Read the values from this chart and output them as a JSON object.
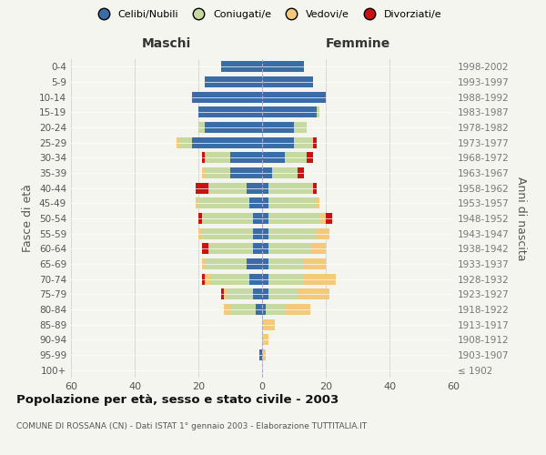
{
  "age_groups": [
    "100+",
    "95-99",
    "90-94",
    "85-89",
    "80-84",
    "75-79",
    "70-74",
    "65-69",
    "60-64",
    "55-59",
    "50-54",
    "45-49",
    "40-44",
    "35-39",
    "30-34",
    "25-29",
    "20-24",
    "15-19",
    "10-14",
    "5-9",
    "0-4"
  ],
  "birth_years": [
    "≤ 1902",
    "1903-1907",
    "1908-1912",
    "1913-1917",
    "1918-1922",
    "1923-1927",
    "1928-1932",
    "1933-1937",
    "1938-1942",
    "1943-1947",
    "1948-1952",
    "1953-1957",
    "1958-1962",
    "1963-1967",
    "1968-1972",
    "1973-1977",
    "1978-1982",
    "1983-1987",
    "1988-1992",
    "1993-1997",
    "1998-2002"
  ],
  "maschi": {
    "celibi": [
      0,
      1,
      0,
      0,
      2,
      3,
      4,
      5,
      3,
      3,
      3,
      4,
      5,
      10,
      10,
      22,
      18,
      20,
      22,
      18,
      13
    ],
    "coniugati": [
      0,
      0,
      0,
      0,
      8,
      8,
      12,
      13,
      14,
      16,
      16,
      16,
      12,
      8,
      8,
      4,
      2,
      0,
      0,
      0,
      0
    ],
    "vedovi": [
      0,
      0,
      0,
      0,
      2,
      1,
      2,
      1,
      0,
      1,
      0,
      1,
      0,
      1,
      0,
      1,
      0,
      0,
      0,
      0,
      0
    ],
    "divorziati": [
      0,
      0,
      0,
      0,
      0,
      1,
      1,
      0,
      2,
      0,
      1,
      0,
      4,
      0,
      1,
      0,
      0,
      0,
      0,
      0,
      0
    ]
  },
  "femmine": {
    "nubili": [
      0,
      0,
      0,
      0,
      1,
      2,
      2,
      2,
      2,
      2,
      2,
      2,
      2,
      3,
      7,
      10,
      10,
      17,
      20,
      16,
      13
    ],
    "coniugate": [
      0,
      0,
      0,
      0,
      6,
      9,
      11,
      11,
      13,
      15,
      16,
      15,
      14,
      8,
      7,
      6,
      4,
      1,
      0,
      0,
      0
    ],
    "vedove": [
      0,
      1,
      2,
      4,
      8,
      10,
      10,
      7,
      5,
      4,
      2,
      1,
      0,
      0,
      0,
      0,
      0,
      0,
      0,
      0,
      0
    ],
    "divorziate": [
      0,
      0,
      0,
      0,
      0,
      0,
      0,
      0,
      0,
      0,
      2,
      0,
      1,
      2,
      2,
      1,
      0,
      0,
      0,
      0,
      0
    ]
  },
  "color_celibi": "#3a6da8",
  "color_coniugati": "#c5d9a0",
  "color_vedovi": "#f5c97a",
  "color_divorziati": "#cc1111",
  "xlim": 60,
  "title": "Popolazione per età, sesso e stato civile - 2003",
  "subtitle": "COMUNE DI ROSSANA (CN) - Dati ISTAT 1° gennaio 2003 - Elaborazione TUTTITALIA.IT",
  "ylabel_left": "Fasce di età",
  "ylabel_right": "Anni di nascita",
  "label_maschi": "Maschi",
  "label_femmine": "Femmine",
  "bg_color": "#f5f5f0",
  "legend_labels": [
    "Celibi/Nubili",
    "Coniugati/e",
    "Vedovi/e",
    "Divorziati/e"
  ]
}
